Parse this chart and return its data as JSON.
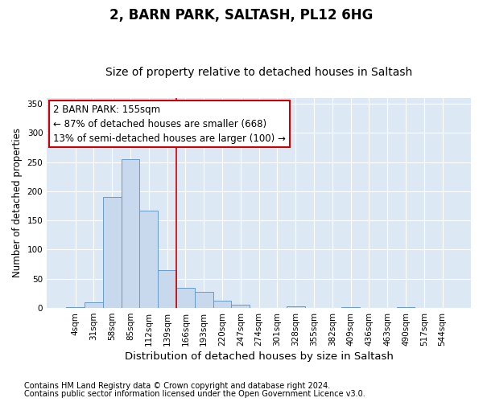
{
  "title": "2, BARN PARK, SALTASH, PL12 6HG",
  "subtitle": "Size of property relative to detached houses in Saltash",
  "xlabel": "Distribution of detached houses by size in Saltash",
  "ylabel": "Number of detached properties",
  "bar_labels": [
    "4sqm",
    "31sqm",
    "58sqm",
    "85sqm",
    "112sqm",
    "139sqm",
    "166sqm",
    "193sqm",
    "220sqm",
    "247sqm",
    "274sqm",
    "301sqm",
    "328sqm",
    "355sqm",
    "382sqm",
    "409sqm",
    "436sqm",
    "463sqm",
    "490sqm",
    "517sqm",
    "544sqm"
  ],
  "bar_values": [
    2,
    10,
    190,
    255,
    167,
    65,
    35,
    28,
    13,
    5,
    0,
    0,
    3,
    0,
    0,
    2,
    0,
    0,
    2,
    0,
    0
  ],
  "bar_color": "#c8d9ee",
  "bar_edge_color": "#6699cc",
  "axes_bg_color": "#dde8f5",
  "fig_bg_color": "#ffffff",
  "grid_color": "#ffffff",
  "vline_x": 5.5,
  "vline_color": "#cc0000",
  "annotation_line1": "2 BARN PARK: 155sqm",
  "annotation_line2": "← 87% of detached houses are smaller (668)",
  "annotation_line3": "13% of semi-detached houses are larger (100) →",
  "ylim": [
    0,
    360
  ],
  "yticks": [
    0,
    50,
    100,
    150,
    200,
    250,
    300,
    350
  ],
  "footnote1": "Contains HM Land Registry data © Crown copyright and database right 2024.",
  "footnote2": "Contains public sector information licensed under the Open Government Licence v3.0.",
  "title_fontsize": 12,
  "subtitle_fontsize": 10,
  "xlabel_fontsize": 9.5,
  "ylabel_fontsize": 8.5,
  "tick_fontsize": 7.5,
  "annotation_fontsize": 8.5,
  "footnote_fontsize": 7
}
